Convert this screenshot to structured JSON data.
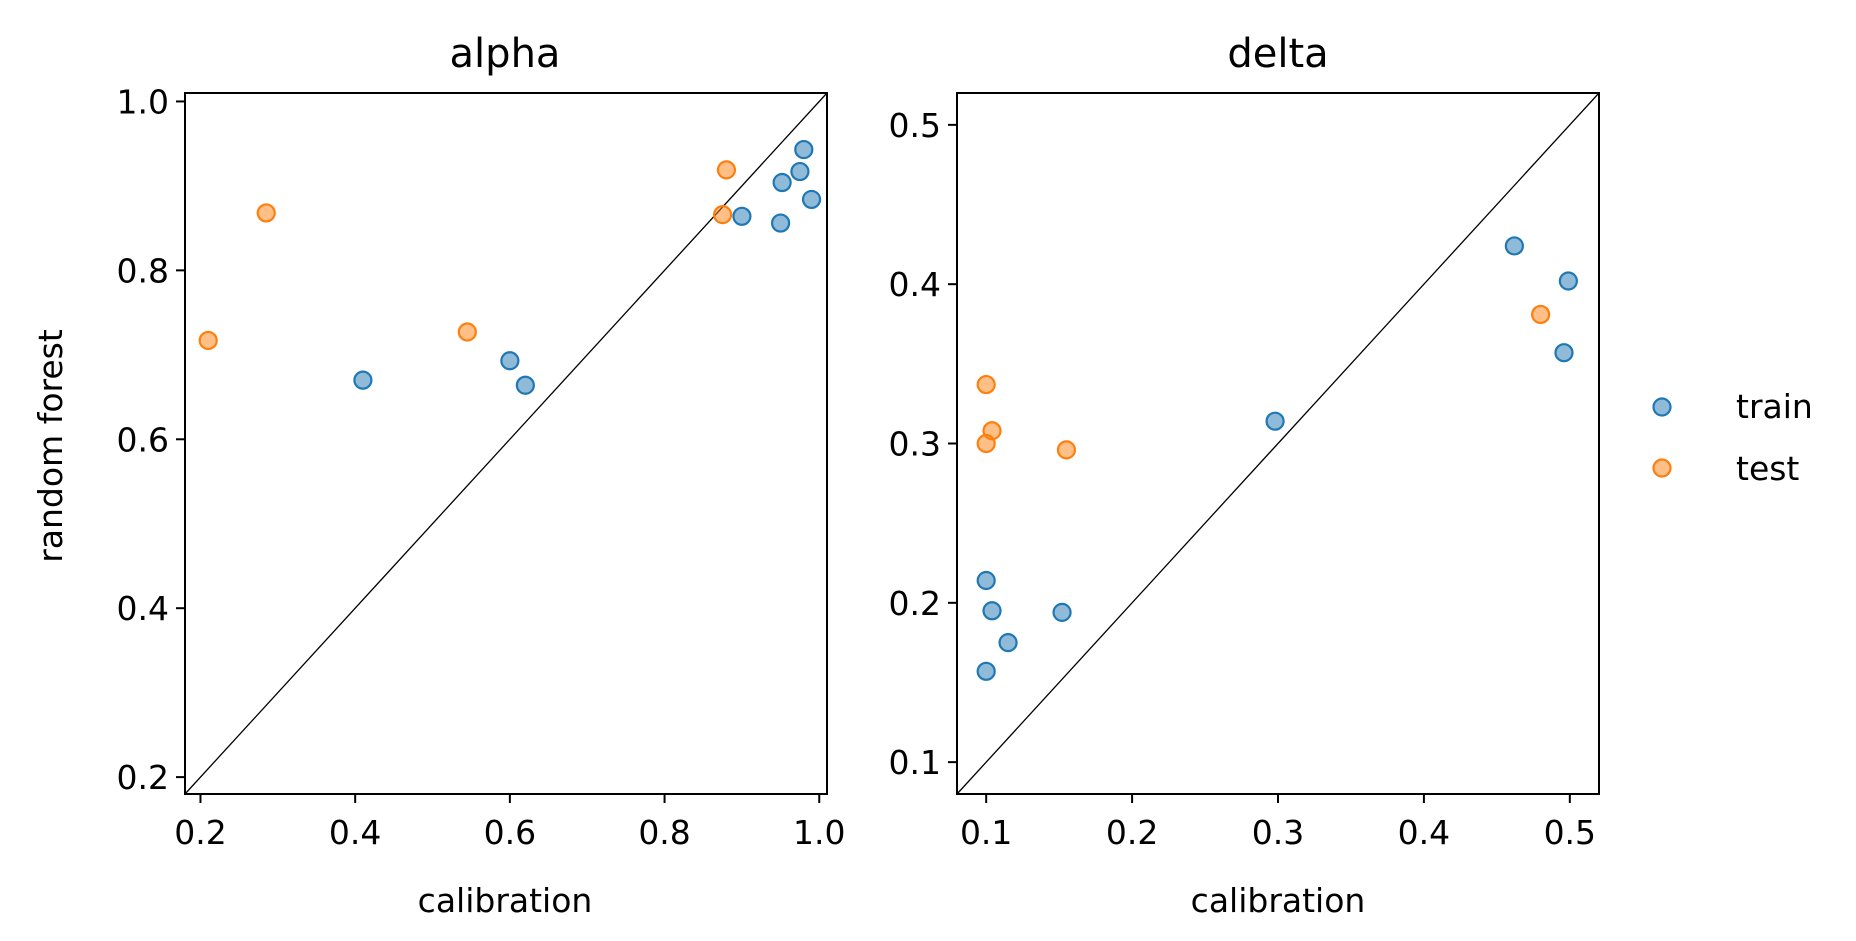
{
  "colors": {
    "train": "#1f77b4",
    "test": "#ff7f0e",
    "diagonal": "#000000"
  },
  "ylabel": "random forest",
  "legend": {
    "placement": "right-center",
    "items": [
      {
        "label": "train",
        "color": "#1f77b4"
      },
      {
        "label": "test",
        "color": "#ff7f0e"
      }
    ]
  },
  "chart_data": [
    {
      "type": "scatter",
      "title": "alpha",
      "xlabel": "calibration",
      "ylabel": "random forest",
      "xlim": [
        0.18,
        1.01
      ],
      "ylim": [
        0.18,
        1.01
      ],
      "xticks": [
        0.2,
        0.4,
        0.6,
        0.8,
        1.0
      ],
      "xtick_labels": [
        "0.2",
        "0.4",
        "0.6",
        "0.8",
        "1.0"
      ],
      "yticks": [
        0.2,
        0.4,
        0.6,
        0.8,
        1.0
      ],
      "ytick_labels": [
        "0.2",
        "0.4",
        "0.6",
        "0.8",
        "1.0"
      ],
      "diagonal": true,
      "grid": false,
      "series": [
        {
          "name": "train",
          "points": [
            {
              "x": 0.41,
              "y": 0.67
            },
            {
              "x": 0.6,
              "y": 0.693
            },
            {
              "x": 0.62,
              "y": 0.664
            },
            {
              "x": 0.9,
              "y": 0.864
            },
            {
              "x": 0.95,
              "y": 0.856
            },
            {
              "x": 0.952,
              "y": 0.904
            },
            {
              "x": 0.975,
              "y": 0.917
            },
            {
              "x": 0.98,
              "y": 0.943
            },
            {
              "x": 0.99,
              "y": 0.884
            }
          ]
        },
        {
          "name": "test",
          "points": [
            {
              "x": 0.21,
              "y": 0.717
            },
            {
              "x": 0.285,
              "y": 0.868
            },
            {
              "x": 0.545,
              "y": 0.727
            },
            {
              "x": 0.875,
              "y": 0.866
            },
            {
              "x": 0.88,
              "y": 0.919
            }
          ]
        }
      ]
    },
    {
      "type": "scatter",
      "title": "delta",
      "xlabel": "calibration",
      "ylabel": "",
      "xlim": [
        0.08,
        0.52
      ],
      "ylim": [
        0.08,
        0.52
      ],
      "xticks": [
        0.1,
        0.2,
        0.3,
        0.4,
        0.5
      ],
      "xtick_labels": [
        "0.1",
        "0.2",
        "0.3",
        "0.4",
        "0.5"
      ],
      "yticks": [
        0.1,
        0.2,
        0.3,
        0.4,
        0.5
      ],
      "ytick_labels": [
        "0.1",
        "0.2",
        "0.3",
        "0.4",
        "0.5"
      ],
      "diagonal": true,
      "grid": false,
      "series": [
        {
          "name": "train",
          "points": [
            {
              "x": 0.1,
              "y": 0.214
            },
            {
              "x": 0.104,
              "y": 0.195
            },
            {
              "x": 0.1,
              "y": 0.157
            },
            {
              "x": 0.115,
              "y": 0.175
            },
            {
              "x": 0.152,
              "y": 0.194
            },
            {
              "x": 0.298,
              "y": 0.314
            },
            {
              "x": 0.462,
              "y": 0.424
            },
            {
              "x": 0.499,
              "y": 0.402
            },
            {
              "x": 0.496,
              "y": 0.357
            }
          ]
        },
        {
          "name": "test",
          "points": [
            {
              "x": 0.1,
              "y": 0.337
            },
            {
              "x": 0.104,
              "y": 0.308
            },
            {
              "x": 0.1,
              "y": 0.3
            },
            {
              "x": 0.155,
              "y": 0.296
            },
            {
              "x": 0.48,
              "y": 0.381
            }
          ]
        }
      ]
    }
  ]
}
